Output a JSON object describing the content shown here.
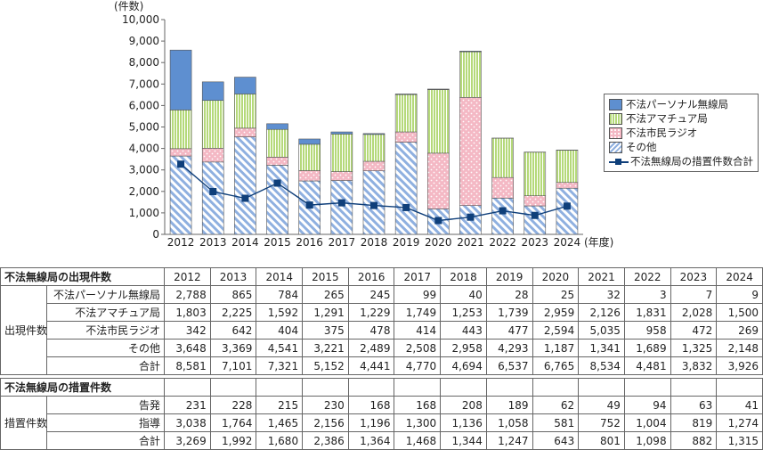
{
  "chart_data": {
    "type": "bar",
    "stacked": true,
    "ylabel": "(件数)",
    "xlabel": "(年度)",
    "ylim": [
      0,
      10000
    ],
    "yticks": [
      "0",
      "1,000",
      "2,000",
      "3,000",
      "4,000",
      "5,000",
      "6,000",
      "7,000",
      "8,000",
      "9,000",
      "10,000"
    ],
    "categories": [
      "2012",
      "2013",
      "2014",
      "2015",
      "2016",
      "2017",
      "2018",
      "2019",
      "2020",
      "2021",
      "2022",
      "2023",
      "2024"
    ],
    "series": [
      {
        "name": "その他",
        "values": [
          3648,
          3369,
          4541,
          3221,
          2489,
          2508,
          2958,
          4293,
          1187,
          1341,
          1689,
          1325,
          2148
        ],
        "color": "#8fb0e0",
        "pattern": "diagonal-hatch"
      },
      {
        "name": "不法市民ラジオ",
        "values": [
          342,
          642,
          404,
          375,
          478,
          414,
          443,
          477,
          2594,
          5035,
          958,
          472,
          269
        ],
        "color": "#f4b8c4",
        "pattern": "dots"
      },
      {
        "name": "不法アマチュア局",
        "values": [
          1803,
          2225,
          1592,
          1291,
          1229,
          1749,
          1253,
          1739,
          2959,
          2126,
          1831,
          2028,
          1500
        ],
        "color": "#b5d97a",
        "pattern": "vertical-lines"
      },
      {
        "name": "不法パーソナル無線局",
        "values": [
          2788,
          865,
          784,
          265,
          245,
          99,
          40,
          28,
          25,
          32,
          3,
          7,
          9
        ],
        "color": "#5e8fd0",
        "pattern": "solid"
      }
    ],
    "line_series": {
      "name": "不法無線局の措置件数合計",
      "values": [
        3269,
        1992,
        1680,
        2386,
        1364,
        1468,
        1344,
        1247,
        643,
        801,
        1098,
        882,
        1315
      ],
      "color": "#0f3f7a"
    },
    "legend_order": [
      "不法パーソナル無線局",
      "不法アマチュア局",
      "不法市民ラジオ",
      "その他",
      "不法無線局の措置件数合計"
    ],
    "legend_position": "right"
  },
  "table1": {
    "title": "不法無線局の出現件数",
    "group_label": "出現件数",
    "years": [
      "2012",
      "2013",
      "2014",
      "2015",
      "2016",
      "2017",
      "2018",
      "2019",
      "2020",
      "2021",
      "2022",
      "2023",
      "2024"
    ],
    "rows": [
      {
        "label": "不法パーソナル無線局",
        "values": [
          "2,788",
          "865",
          "784",
          "265",
          "245",
          "99",
          "40",
          "28",
          "25",
          "32",
          "3",
          "7",
          "9"
        ]
      },
      {
        "label": "不法アマチュア局",
        "values": [
          "1,803",
          "2,225",
          "1,592",
          "1,291",
          "1,229",
          "1,749",
          "1,253",
          "1,739",
          "2,959",
          "2,126",
          "1,831",
          "2,028",
          "1,500"
        ]
      },
      {
        "label": "不法市民ラジオ",
        "values": [
          "342",
          "642",
          "404",
          "375",
          "478",
          "414",
          "443",
          "477",
          "2,594",
          "5,035",
          "958",
          "472",
          "269"
        ]
      },
      {
        "label": "その他",
        "values": [
          "3,648",
          "3,369",
          "4,541",
          "3,221",
          "2,489",
          "2,508",
          "2,958",
          "4,293",
          "1,187",
          "1,341",
          "1,689",
          "1,325",
          "2,148"
        ]
      },
      {
        "label": "合計",
        "values": [
          "8,581",
          "7,101",
          "7,321",
          "5,152",
          "4,441",
          "4,770",
          "4,694",
          "6,537",
          "6,765",
          "8,534",
          "4,481",
          "3,832",
          "3,926"
        ]
      }
    ]
  },
  "table2": {
    "title": "不法無線局の措置件数",
    "group_label": "措置件数",
    "rows": [
      {
        "label": "告発",
        "values": [
          "231",
          "228",
          "215",
          "230",
          "168",
          "168",
          "208",
          "189",
          "62",
          "49",
          "94",
          "63",
          "41"
        ]
      },
      {
        "label": "指導",
        "values": [
          "3,038",
          "1,764",
          "1,465",
          "2,156",
          "1,196",
          "1,300",
          "1,136",
          "1,058",
          "581",
          "752",
          "1,004",
          "819",
          "1,274"
        ]
      },
      {
        "label": "合計",
        "values": [
          "3,269",
          "1,992",
          "1,680",
          "2,386",
          "1,364",
          "1,468",
          "1,344",
          "1,247",
          "643",
          "801",
          "1,098",
          "882",
          "1,315"
        ]
      }
    ]
  }
}
